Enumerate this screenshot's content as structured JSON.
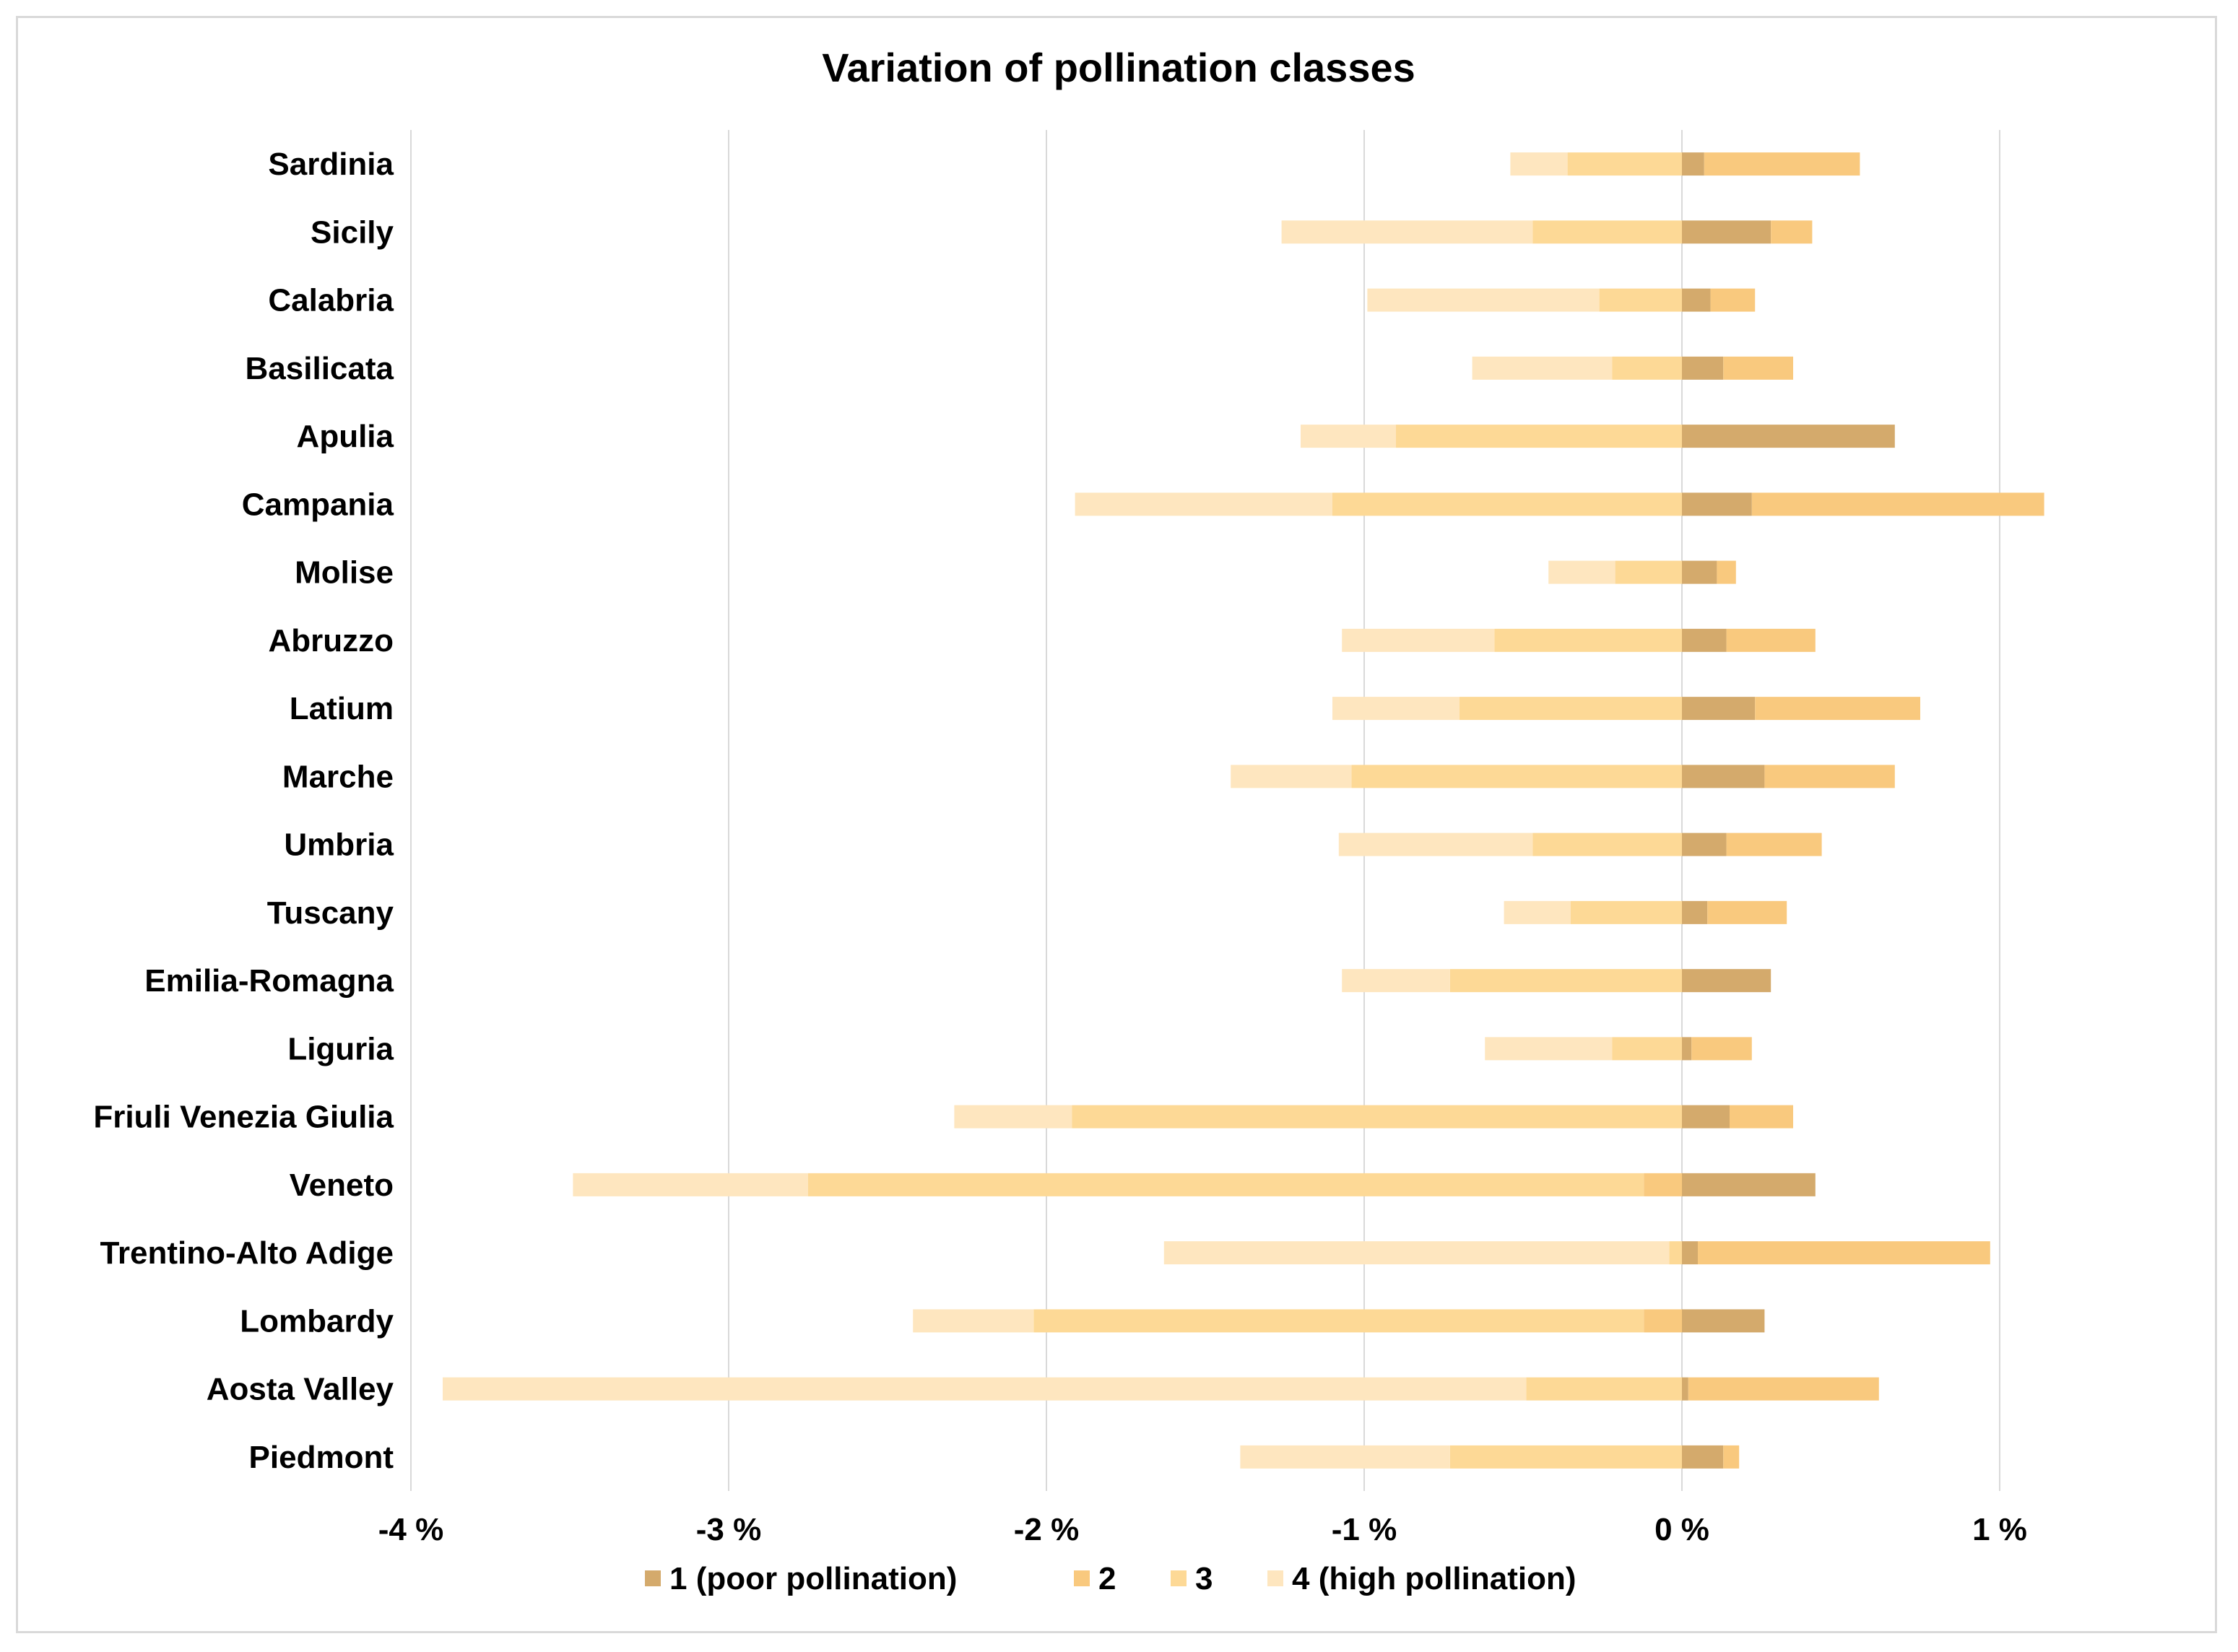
{
  "chart_data": {
    "type": "bar",
    "orientation": "horizontal",
    "stacked": true,
    "title": "Variation of pollination classes",
    "xlabel": "",
    "ylabel": "",
    "xlim": [
      -4,
      1
    ],
    "x_ticks": [
      -4,
      -3,
      -2,
      -1,
      0,
      1
    ],
    "x_tick_labels": [
      "-4 %",
      "-3 %",
      "-2 %",
      "-1 %",
      "0 %",
      "1 %"
    ],
    "grid": "vertical",
    "legend_position": "bottom",
    "categories": [
      "Sardinia",
      "Sicily",
      "Calabria",
      "Basilicata",
      "Apulia",
      "Campania",
      "Molise",
      "Abruzzo",
      "Latium",
      "Marche",
      "Umbria",
      "Tuscany",
      "Emilia-Romagna",
      "Liguria",
      "Friuli Venezia Giulia",
      "Veneto",
      "Trentino-Alto Adige",
      "Lombardy",
      "Aosta Valley",
      "Piedmont"
    ],
    "series": [
      {
        "name": "1 (poor pollination)",
        "color": "#d4aa6c",
        "values": [
          0.07,
          0.28,
          0.09,
          0.13,
          0.67,
          0.22,
          0.11,
          0.14,
          0.23,
          0.26,
          0.14,
          0.08,
          0.28,
          0.03,
          0.15,
          0.42,
          0.05,
          0.26,
          0.02,
          0.13
        ]
      },
      {
        "name": "2",
        "color": "#f9c97e",
        "values": [
          0.49,
          0.13,
          0.14,
          0.22,
          0.0,
          0.92,
          0.06,
          0.28,
          0.52,
          0.41,
          0.3,
          0.25,
          0.0,
          0.19,
          0.2,
          -0.12,
          0.92,
          -0.12,
          0.6,
          0.05
        ]
      },
      {
        "name": "3",
        "color": "#fdd996",
        "values": [
          -0.36,
          -0.47,
          -0.26,
          -0.22,
          -0.9,
          -1.1,
          -0.21,
          -0.59,
          -0.7,
          -1.04,
          -0.47,
          -0.35,
          -0.73,
          -0.22,
          -1.92,
          -2.63,
          -0.04,
          -1.92,
          -0.49,
          -0.73
        ]
      },
      {
        "name": "4 (high pollination)",
        "color": "#fee6bf",
        "values": [
          -0.18,
          -0.79,
          -0.73,
          -0.44,
          -0.3,
          -0.81,
          -0.21,
          -0.48,
          -0.4,
          -0.38,
          -0.61,
          -0.21,
          -0.34,
          -0.4,
          -0.37,
          -0.74,
          -1.59,
          -0.38,
          -3.41,
          -0.66
        ]
      }
    ]
  }
}
